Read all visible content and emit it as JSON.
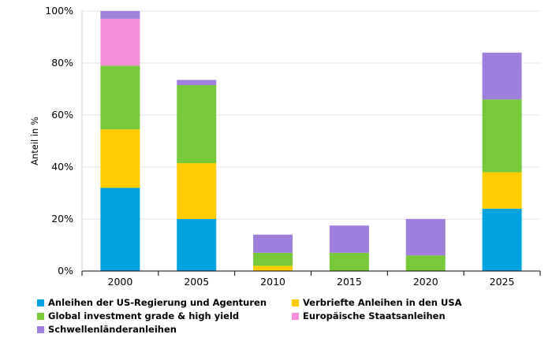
{
  "chart_data": {
    "type": "bar",
    "stacked": true,
    "categories": [
      "2000",
      "2005",
      "2010",
      "2015",
      "2020",
      "2025"
    ],
    "ylabel": "Anteil in %",
    "ylim": [
      0,
      100
    ],
    "yticks": [
      "0%",
      "20%",
      "40%",
      "60%",
      "80%",
      "100%"
    ],
    "ytick_values": [
      0,
      20,
      40,
      60,
      80,
      100
    ],
    "grid": true,
    "legend_position": "bottom",
    "series": [
      {
        "name": "Anleihen der US-Regierung und Agenturen",
        "color": "#00a3e0",
        "values": [
          32,
          20,
          0,
          0,
          0,
          24
        ]
      },
      {
        "name": "Verbriefte Anleihen in den USA",
        "color": "#ffcc00",
        "values": [
          22.5,
          21.5,
          2,
          0,
          0,
          14
        ]
      },
      {
        "name": "Global investment grade & high yield",
        "color": "#78c93a",
        "values": [
          24.5,
          30,
          5,
          7,
          6,
          28
        ]
      },
      {
        "name": "Europäische Staatsanleihen",
        "color": "#f58fd9",
        "values": [
          18,
          0,
          0,
          0,
          0,
          0
        ]
      },
      {
        "name": "Schwellenländeranleihen",
        "color": "#9f7fdb",
        "values": [
          3,
          2,
          7,
          10.5,
          14,
          18
        ]
      }
    ]
  }
}
